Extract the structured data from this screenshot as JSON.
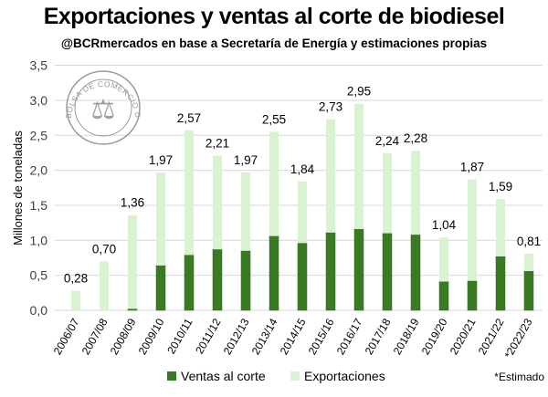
{
  "chart_data": {
    "type": "bar",
    "stacked": true,
    "title": "Exportaciones y ventas al corte de biodiesel",
    "subtitle": "@BCRmercados en base a Secretaría de Energía y estimaciones propias",
    "xlabel": "",
    "ylabel": "Millones de toneladas",
    "ylim": [
      0,
      3.5
    ],
    "yticks": [
      "0,0",
      "0,5",
      "1,0",
      "1,5",
      "2,0",
      "2,5",
      "3,0",
      "3,5"
    ],
    "categories": [
      "2006/07",
      "2007/08",
      "2008/09",
      "2009/10",
      "2010/11",
      "2011/12",
      "2012/13",
      "2013/14",
      "2014/15",
      "2015/16",
      "2016/17",
      "2017/18",
      "2018/19",
      "2019/20",
      "2020/21",
      "2021/22",
      "*2022/23"
    ],
    "totals": [
      0.28,
      0.7,
      1.36,
      1.97,
      2.57,
      2.21,
      1.97,
      2.55,
      1.84,
      2.73,
      2.95,
      2.24,
      2.28,
      1.04,
      1.87,
      1.59,
      0.81
    ],
    "total_labels": [
      "0,28",
      "0,70",
      "1,36",
      "1,97",
      "2,57",
      "2,21",
      "1,97",
      "2,55",
      "1,84",
      "2,73",
      "2,95",
      "2,24",
      "2,28",
      "1,04",
      "1,87",
      "1,59",
      "0,81"
    ],
    "series": [
      {
        "name": "Ventas al corte",
        "color": "#3a7a23",
        "values": [
          0,
          0,
          0.02,
          0.64,
          0.79,
          0.87,
          0.85,
          1.06,
          0.96,
          1.11,
          1.16,
          1.1,
          1.08,
          0.41,
          0.42,
          0.77,
          0.56
        ]
      },
      {
        "name": "Exportaciones",
        "color": "#d9f2d0",
        "values": [
          0.28,
          0.7,
          1.34,
          1.33,
          1.78,
          1.34,
          1.12,
          1.49,
          0.88,
          1.62,
          1.79,
          1.14,
          1.2,
          0.63,
          1.45,
          0.82,
          0.25
        ]
      }
    ],
    "grid": true,
    "legend": "bottom",
    "footnote": "*Estimado",
    "logo_text": "BOLSA DE COMERCIO DE ROSARIO"
  }
}
